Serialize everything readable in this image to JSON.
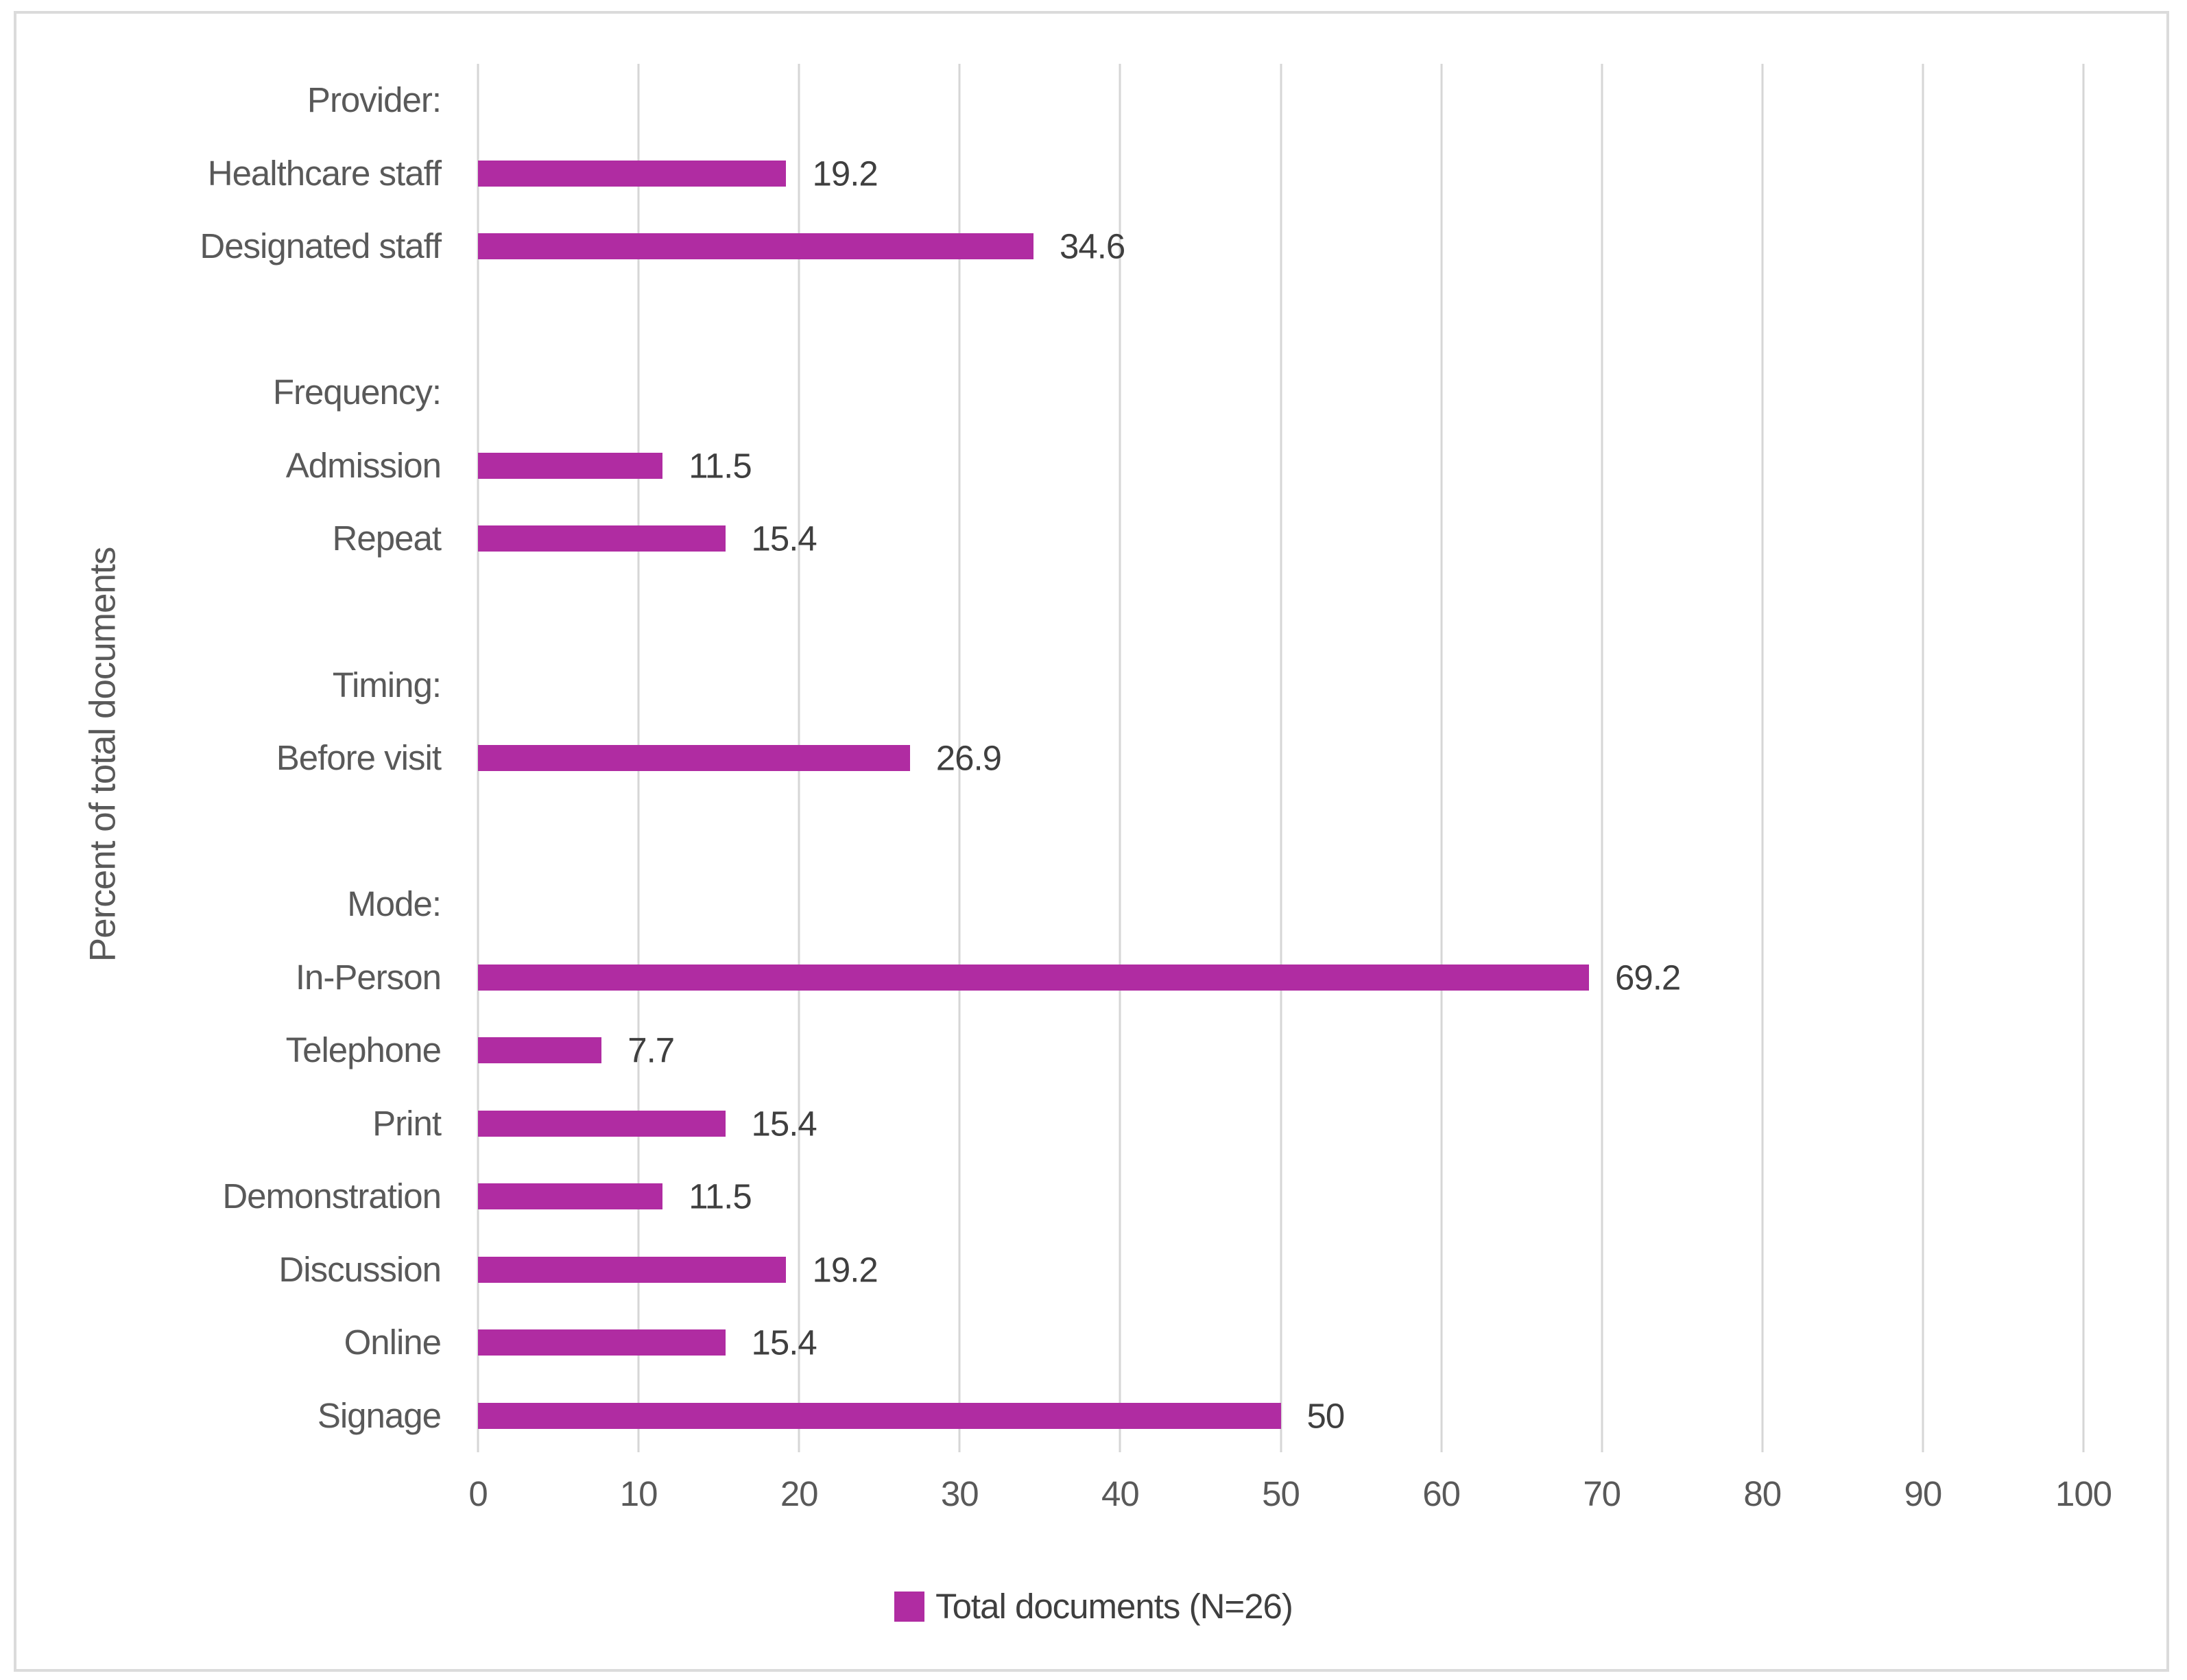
{
  "figure": {
    "title": "",
    "y_axis_title": "Percent of total documents",
    "legend_label": "Total documents (N=26)"
  },
  "chart_data": {
    "type": "bar",
    "orientation": "horizontal",
    "title": "",
    "xlabel": "",
    "ylabel": "Percent of total documents",
    "series_name": "Total documents (N=26)",
    "xlim": [
      0,
      100
    ],
    "x_ticks": [
      0,
      10,
      20,
      30,
      40,
      50,
      60,
      70,
      80,
      90,
      100
    ],
    "grid": true,
    "legend_position": "bottom",
    "rows": [
      {
        "type": "header",
        "label": "Provider:"
      },
      {
        "type": "bar",
        "label": "Healthcare staff",
        "value": 19.2,
        "value_label": "19.2"
      },
      {
        "type": "bar",
        "label": "Designated staff",
        "value": 34.6,
        "value_label": "34.6"
      },
      {
        "type": "spacer",
        "label": ""
      },
      {
        "type": "header",
        "label": "Frequency:"
      },
      {
        "type": "bar",
        "label": "Admission",
        "value": 11.5,
        "value_label": "11.5"
      },
      {
        "type": "bar",
        "label": "Repeat",
        "value": 15.4,
        "value_label": "15.4"
      },
      {
        "type": "spacer",
        "label": ""
      },
      {
        "type": "header",
        "label": "Timing:"
      },
      {
        "type": "bar",
        "label": "Before visit",
        "value": 26.9,
        "value_label": "26.9"
      },
      {
        "type": "spacer",
        "label": ""
      },
      {
        "type": "header",
        "label": "Mode:"
      },
      {
        "type": "bar",
        "label": "In-Person",
        "value": 69.2,
        "value_label": "69.2"
      },
      {
        "type": "bar",
        "label": "Telephone",
        "value": 7.7,
        "value_label": "7.7"
      },
      {
        "type": "bar",
        "label": "Print",
        "value": 15.4,
        "value_label": "15.4"
      },
      {
        "type": "bar",
        "label": "Demonstration",
        "value": 11.5,
        "value_label": "11.5"
      },
      {
        "type": "bar",
        "label": "Discussion",
        "value": 19.2,
        "value_label": "19.2"
      },
      {
        "type": "bar",
        "label": "Online",
        "value": 15.4,
        "value_label": "15.4"
      },
      {
        "type": "bar",
        "label": "Signage",
        "value": 50,
        "value_label": "50"
      }
    ],
    "colors": {
      "bar": "#B02CA2",
      "gridline": "#D6D6D6",
      "category_text": "#595959",
      "value_text": "#3F3F3F",
      "tick_text": "#595959",
      "axis_title_text": "#595959",
      "border": "#DBDBDB",
      "background": "#FFFFFF"
    }
  }
}
